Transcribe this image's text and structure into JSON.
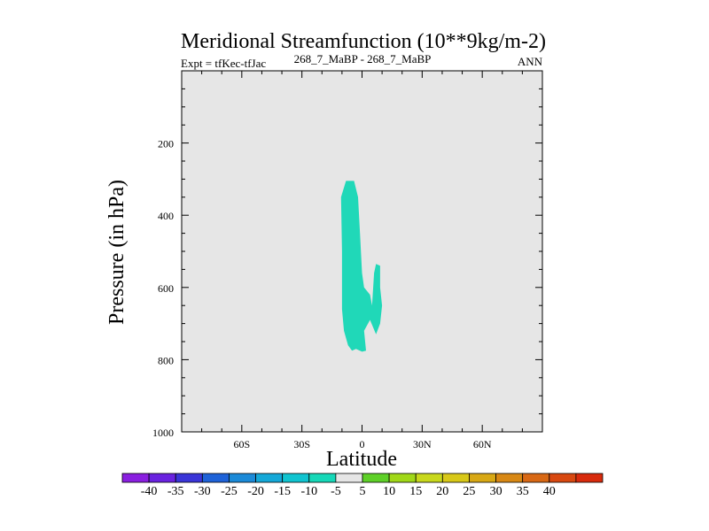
{
  "chart_data": {
    "type": "contour",
    "title": "Meridional Streamfunction (10**9kg/m-2)",
    "subtitle_left": "Expt = tfKec-tfJac",
    "subtitle_center": "268_7_MaBP - 268_7_MaBP",
    "subtitle_right": "ANN",
    "xlabel": "Latitude",
    "ylabel": "Pressure (in hPa)",
    "xlim": [
      -90,
      90
    ],
    "ylim": [
      1000,
      0
    ],
    "x_ticks": [
      {
        "value": -60,
        "label": "60S"
      },
      {
        "value": -30,
        "label": "30S"
      },
      {
        "value": 0,
        "label": "0"
      },
      {
        "value": 30,
        "label": "30N"
      },
      {
        "value": 60,
        "label": "60N"
      }
    ],
    "y_ticks": [
      {
        "value": 200,
        "label": "200"
      },
      {
        "value": 400,
        "label": "400"
      },
      {
        "value": 600,
        "label": "600"
      },
      {
        "value": 800,
        "label": "800"
      },
      {
        "value": 1000,
        "label": "1000"
      }
    ],
    "background_color": "#e6e6e6",
    "filled_region": {
      "level_range": [
        -10,
        -5
      ],
      "color": "#20d8b8",
      "outline": [
        [
          -8,
          305
        ],
        [
          -4,
          305
        ],
        [
          -2,
          350
        ],
        [
          -1,
          450
        ],
        [
          0,
          560
        ],
        [
          1,
          600
        ],
        [
          4,
          620
        ],
        [
          5,
          650
        ],
        [
          6,
          560
        ],
        [
          7,
          535
        ],
        [
          9,
          540
        ],
        [
          9,
          600
        ],
        [
          10,
          650
        ],
        [
          9,
          700
        ],
        [
          7,
          730
        ],
        [
          4,
          690
        ],
        [
          1,
          720
        ],
        [
          2,
          775
        ],
        [
          0,
          778
        ],
        [
          -3,
          770
        ],
        [
          -5,
          775
        ],
        [
          -7,
          760
        ],
        [
          -9,
          720
        ],
        [
          -10,
          660
        ],
        [
          -10,
          600
        ],
        [
          -10,
          500
        ],
        [
          -10.5,
          350
        ]
      ]
    },
    "colorbar": {
      "colors": [
        "#8a1fe0",
        "#6a23e0",
        "#3a35d8",
        "#1e62d8",
        "#1b8ad8",
        "#14a8d8",
        "#10c4d0",
        "#16d8b8",
        "#e6e6e6",
        "#5ed028",
        "#a0d818",
        "#c8d81c",
        "#d8c818",
        "#d8a814",
        "#d88814",
        "#d86814",
        "#d84810",
        "#d82a0c"
      ],
      "labels": [
        "-40",
        "-35",
        "-30",
        "-25",
        "-20",
        "-15",
        "-10",
        "-5",
        "5",
        "10",
        "15",
        "20",
        "25",
        "30",
        "35",
        "40"
      ]
    }
  }
}
